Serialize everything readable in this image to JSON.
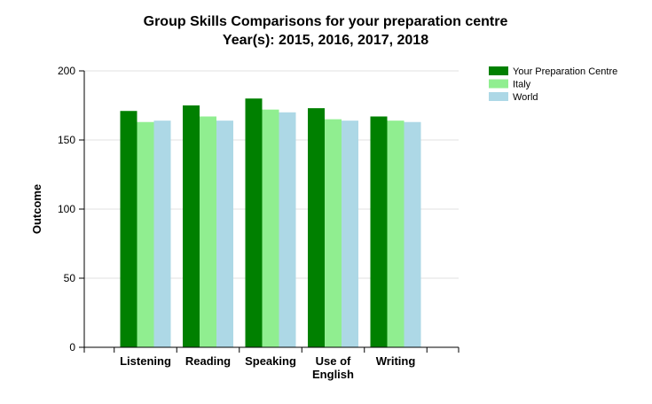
{
  "chart_data": {
    "type": "bar",
    "title": "Group Skills Comparisons for your preparation centre",
    "subtitle": "Year(s): 2015, 2016, 2017, 2018",
    "xlabel": "",
    "ylabel": "Outcome",
    "ylim": [
      0,
      200
    ],
    "yticks": [
      0,
      50,
      100,
      150,
      200
    ],
    "categories": [
      [
        "Listening"
      ],
      [
        "Reading"
      ],
      [
        "Speaking"
      ],
      [
        "Use of",
        "English"
      ],
      [
        "Writing"
      ]
    ],
    "series": [
      {
        "name": "Your Preparation Centre",
        "color": "#008000",
        "values": [
          171,
          175,
          180,
          173,
          167
        ]
      },
      {
        "name": "Italy",
        "color": "#90ee90",
        "values": [
          163,
          167,
          172,
          165,
          164
        ]
      },
      {
        "name": "World",
        "color": "#add8e6",
        "values": [
          164,
          164,
          170,
          164,
          163
        ]
      }
    ],
    "grid": true,
    "legend_position": "top-right"
  }
}
